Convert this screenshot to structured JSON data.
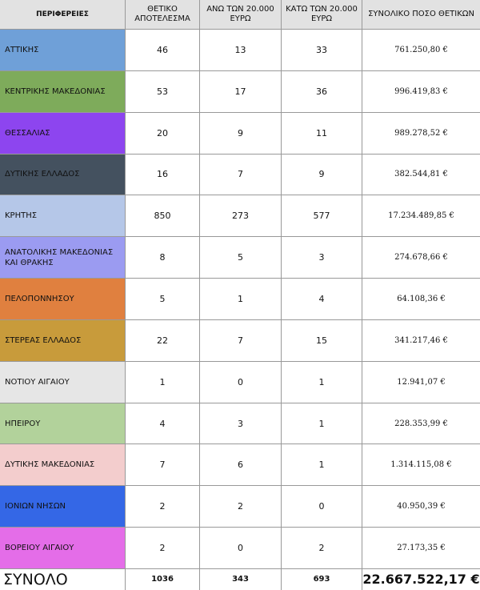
{
  "table": {
    "header": [
      "ΠΕΡΙΦΕΡΕΙΕΣ",
      "ΘΕΤΙΚΟ ΑΠΟΤΕΛΕΣΜΑ",
      "ΑΝΩ ΤΩΝ 20.000 ΕΥΡΩ",
      "ΚΑΤΩ ΤΩΝ 20.000 ΕΥΡΩ",
      "ΣΥΝΟΛΙΚΟ ΠΟΣΟ ΘΕΤΙΚΩΝ"
    ],
    "rows": [
      [
        "ΑΤΤΙΚΗΣ",
        46,
        13,
        33,
        "761.250,80 €"
      ],
      [
        "ΚΕΝΤΡΙΚΗΣ  ΜΑΚΕΔΟΝΙΑΣ",
        53,
        17,
        36,
        "996.419,83 €"
      ],
      [
        "ΘΕΣΣΑΛΙΑΣ",
        20,
        9,
        11,
        "989.278,52 €"
      ],
      [
        "ΔΥΤΙΚΗΣ ΕΛΛΑΔΟΣ",
        16,
        7,
        9,
        "382.544,81 €"
      ],
      [
        "ΚΡΗΤΗΣ",
        850,
        273,
        577,
        "17.234.489,85 €"
      ],
      [
        "ΑΝΑΤΟΛΙΚΗΣ ΜΑΚΕΔΟΝΙΑΣ ΚΑΙ ΘΡΑΚΗΣ",
        8,
        5,
        3,
        "274.678,66 €"
      ],
      [
        "ΠΕΛΟΠΟΝΝΗΣΟΥ",
        5,
        1,
        4,
        "64.108,36 €"
      ],
      [
        "ΣΤΕΡΕΑΣ ΕΛΛΑΔΟΣ",
        22,
        7,
        15,
        "341.217,46 €"
      ],
      [
        "ΝΟΤΙΟΥ ΑΙΓΑΙΟΥ",
        1,
        0,
        1,
        "12.941,07 €"
      ],
      [
        "ΗΠΕΙΡΟΥ",
        4,
        3,
        1,
        "228.353,99 €"
      ],
      [
        "ΔΥΤΙΚΗΣ ΜΑΚΕΔΟΝΙΑΣ",
        7,
        6,
        1,
        "1.314.115,08 €"
      ],
      [
        "ΙΟΝΙΩΝ ΝΗΣΩΝ",
        2,
        2,
        0,
        "40.950,39 €"
      ],
      [
        "ΒΟΡΕΙΟΥ ΑΙΓΑΙΟΥ",
        2,
        0,
        2,
        "27.173,35 €"
      ]
    ],
    "total": [
      "ΣΥΝΟΛΟ",
      1036,
      343,
      693,
      "22.667.522,17 €"
    ]
  }
}
